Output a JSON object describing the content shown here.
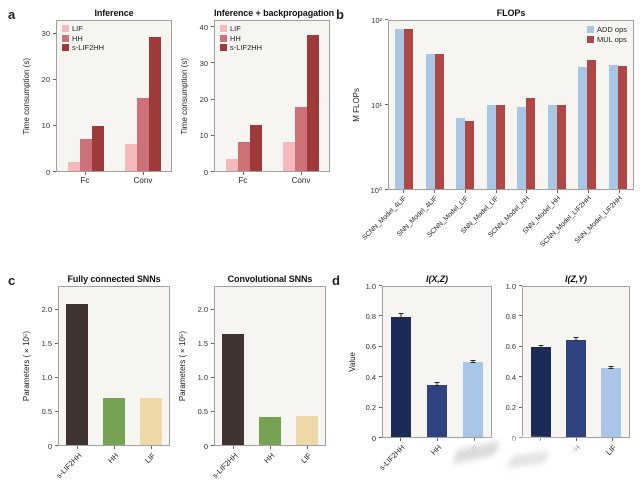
{
  "figure": {
    "panel_labels": {
      "a": "a",
      "b": "b",
      "c": "c",
      "d": "d"
    }
  },
  "chart_data": [
    {
      "id": "a1",
      "type": "bar",
      "title": "Inference",
      "ylabel": "Time consumption (s)",
      "categories": [
        "Fc",
        "Conv"
      ],
      "series": [
        {
          "name": "LIF",
          "color": "#f4b9bc",
          "values": [
            2,
            6
          ]
        },
        {
          "name": "HH",
          "color": "#cd7179",
          "values": [
            7,
            16
          ]
        },
        {
          "name": "s-LIF2HH",
          "color": "#9e3a3a",
          "values": [
            10,
            29.5
          ]
        }
      ],
      "ylim": [
        0,
        33
      ],
      "yticks": [
        0,
        10,
        20,
        30
      ],
      "ytick_labels": [
        "0",
        "10",
        "20",
        "30"
      ],
      "legend": {
        "position": "top-left"
      },
      "grid": false
    },
    {
      "id": "a2",
      "type": "bar",
      "title": "Inference + backpropagation",
      "ylabel": "Time consumption (s)",
      "categories": [
        "Fc",
        "Conv"
      ],
      "series": [
        {
          "name": "LIF",
          "color": "#f4b9bc",
          "values": [
            3.5,
            8
          ]
        },
        {
          "name": "HH",
          "color": "#cd7179",
          "values": [
            8,
            18
          ]
        },
        {
          "name": "s-LIF2HH",
          "color": "#9e3a3a",
          "values": [
            13,
            38
          ]
        }
      ],
      "ylim": [
        0,
        42
      ],
      "yticks": [
        0,
        10,
        20,
        30,
        40
      ],
      "ytick_labels": [
        "0",
        "10",
        "20",
        "30",
        "40"
      ],
      "legend": {
        "position": "top-left"
      },
      "grid": false
    },
    {
      "id": "b",
      "type": "bar",
      "title": "FLOPs",
      "ylabel": "M FLOPs",
      "log": true,
      "categories": [
        "SCNN_Model_4LIF",
        "SNN_Model_4LIF",
        "SCNN_Model_LIF",
        "SNN_Model_LIF",
        "SCNN_Model_HH",
        "SNN_Model_HH",
        "SCNN_Model_LIF2HH",
        "SNN_Model_LIF2HH"
      ],
      "series": [
        {
          "name": "ADD ops",
          "color": "#a9c6e4",
          "values": [
            80,
            40,
            7,
            10,
            9.5,
            10,
            28,
            30
          ]
        },
        {
          "name": "MUL ops",
          "color": "#b04747",
          "values": [
            80,
            40,
            6.5,
            10,
            12,
            10,
            34,
            29
          ]
        }
      ],
      "ylim": [
        1,
        100
      ],
      "yticks": [
        1,
        10,
        100
      ],
      "ytick_labels": [
        "10⁰",
        "10¹",
        "10²"
      ],
      "legend": {
        "position": "top-right"
      },
      "grid": false
    },
    {
      "id": "c1",
      "type": "bar",
      "title": "Fully connected SNNs",
      "ylabel": "Parameters (×10⁵)",
      "categories": [
        "s-LIF2HH",
        "HH",
        "LIF"
      ],
      "series": [
        {
          "colors": [
            "#413430",
            "#76a254",
            "#ecd9a7"
          ],
          "values": [
            2.1,
            0.7,
            0.7
          ]
        }
      ],
      "ylim": [
        0,
        2.35
      ],
      "yticks": [
        0,
        0.5,
        1.0,
        1.5,
        2.0
      ],
      "ytick_labels": [
        "0",
        "0.5",
        "1.0",
        "1.5",
        "2.0"
      ],
      "grid": false
    },
    {
      "id": "c2",
      "type": "bar",
      "title": "Convolutional SNNs",
      "ylabel": "Parameters (×10⁵)",
      "categories": [
        "s-LIF2HH",
        "HH",
        "LIF"
      ],
      "series": [
        {
          "colors": [
            "#413430",
            "#76a254",
            "#ecd9a7"
          ],
          "values": [
            1.65,
            0.42,
            0.43
          ]
        }
      ],
      "ylim": [
        0,
        2.35
      ],
      "yticks": [
        0,
        0.5,
        1.0,
        1.5,
        2.0
      ],
      "ytick_labels": [
        "0",
        "0.5",
        "1.0",
        "1.5",
        "2.0"
      ],
      "grid": false
    },
    {
      "id": "d1",
      "type": "bar",
      "title": "I(X,Z)",
      "title_italic": true,
      "ylabel": "Value",
      "categories": [
        "s-LIF2HH",
        "HH",
        "LIF"
      ],
      "series": [
        {
          "colors": [
            "#1b2a57",
            "#2e4380",
            "#a9c6e8"
          ],
          "values": [
            0.8,
            0.35,
            0.5
          ],
          "errors": [
            0.02,
            0.008,
            0.008
          ]
        }
      ],
      "ylim": [
        0,
        1.0
      ],
      "yticks": [
        0,
        0.2,
        0.4,
        0.6,
        0.8,
        1.0
      ],
      "ytick_labels": [
        "0",
        "0.2",
        "0.4",
        "0.6",
        "0.8",
        "1.0"
      ],
      "grid": false
    },
    {
      "id": "d2",
      "type": "bar",
      "title": "I(Z,Y)",
      "title_italic": true,
      "categories": [
        "s-LIF2HH",
        "HH",
        "LIF"
      ],
      "series": [
        {
          "colors": [
            "#1b2a57",
            "#2e4380",
            "#a9c6e8"
          ],
          "values": [
            0.6,
            0.65,
            0.46
          ],
          "errors": [
            0.008,
            0.008,
            0.008
          ]
        }
      ],
      "ylim": [
        0,
        1.0
      ],
      "yticks": [
        0,
        0.2,
        0.4,
        0.6,
        0.8,
        1.0
      ],
      "ytick_labels": [
        "0",
        "0.2",
        "0.4",
        "0.6",
        "0.8",
        "1.0"
      ],
      "grid": false
    }
  ]
}
